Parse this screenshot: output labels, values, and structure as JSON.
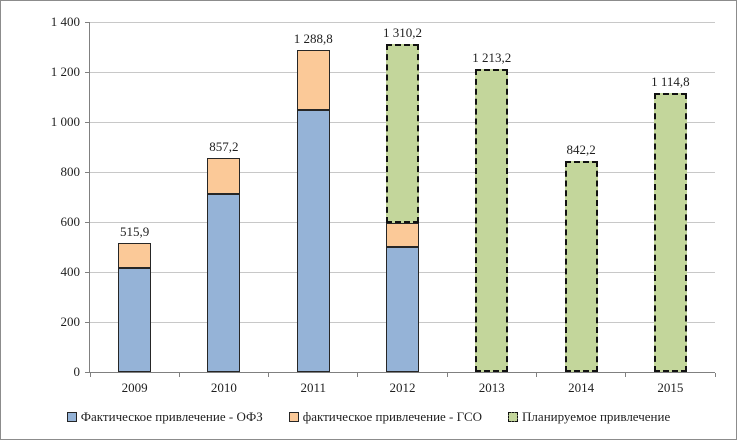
{
  "chart_data": {
    "type": "bar",
    "stacked": true,
    "title": "",
    "categories": [
      "2009",
      "2010",
      "2011",
      "2012",
      "2013",
      "2014",
      "2015"
    ],
    "series": [
      {
        "name": "Фактическое привлечение - ОФЗ",
        "color": "#95B3D7",
        "border_style": "solid",
        "values": [
          415.9,
          712.0,
          1050.0,
          500.0,
          0,
          0,
          0
        ]
      },
      {
        "name": "фактическое привлечение - ГСО",
        "color": "#FBC998",
        "border_style": "solid",
        "values": [
          100.0,
          145.2,
          238.8,
          95.0,
          0,
          0,
          0
        ]
      },
      {
        "name": "Планируемое привлечение",
        "color": "#C3D69B",
        "border_style": "dashed",
        "values": [
          0,
          0,
          0,
          715.2,
          1213.2,
          842.2,
          1114.8
        ]
      }
    ],
    "totals": [
      515.9,
      857.2,
      1288.8,
      1310.2,
      1213.2,
      842.2,
      1114.8
    ],
    "total_labels": [
      "515,9",
      "857,2",
      "1 288,8",
      "1 310,2",
      "1 213,2",
      "842,2",
      "1 114,8"
    ],
    "ylim": [
      0,
      1400
    ],
    "yticks": [
      {
        "value": 1400,
        "label": "1 400"
      },
      {
        "value": 1200,
        "label": "1 200"
      },
      {
        "value": 1000,
        "label": "1 000"
      },
      {
        "value": 800,
        "label": "800"
      },
      {
        "value": 600,
        "label": "600"
      },
      {
        "value": 400,
        "label": "400"
      },
      {
        "value": 200,
        "label": "200"
      },
      {
        "value": 0,
        "label": "0"
      }
    ],
    "grid": true,
    "legend_position": "bottom"
  },
  "colors": {
    "ofz_blue": "#95B3D7",
    "gso_orange": "#FBC998",
    "planned_green": "#C3D69B",
    "bar_border": "#262626",
    "dashed_border": "#111111",
    "gridline": "#C8C8C8",
    "axis": "#808080",
    "text": "#1F1F1F",
    "frame_border": "#8C8C8C",
    "background": "#FFFFFF"
  }
}
